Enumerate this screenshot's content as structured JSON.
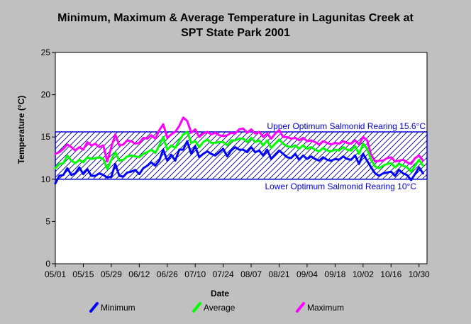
{
  "chart_data": {
    "type": "line",
    "title": "Minimum, Maximum & Average Temperature in Lagunitas Creek at",
    "subtitle": "SPT State Park 2001",
    "xlabel": "Date",
    "ylabel": "Temperature (°C)",
    "ylim": [
      0,
      25
    ],
    "yticks": [
      0,
      5,
      10,
      15,
      20,
      25
    ],
    "xlim": [
      0,
      186
    ],
    "xticks": [
      {
        "day": 0,
        "label": "05/01"
      },
      {
        "day": 14,
        "label": "05/15"
      },
      {
        "day": 28,
        "label": "05/29"
      },
      {
        "day": 42,
        "label": "06/12"
      },
      {
        "day": 56,
        "label": "06/26"
      },
      {
        "day": 70,
        "label": "07/10"
      },
      {
        "day": 84,
        "label": "07/24"
      },
      {
        "day": 98,
        "label": "08/07"
      },
      {
        "day": 112,
        "label": "08/21"
      },
      {
        "day": 126,
        "label": "09/04"
      },
      {
        "day": 140,
        "label": "09/18"
      },
      {
        "day": 154,
        "label": "10/02"
      },
      {
        "day": 168,
        "label": "10/16"
      },
      {
        "day": 182,
        "label": "10/30"
      }
    ],
    "grid": false,
    "legend_position": "bottom",
    "bands": [
      {
        "name": "Upper Optimum Salmonid Rearing 15.6°C",
        "value": 15.6
      },
      {
        "name": "Lower Optimum Salmonid Rearing 10°C",
        "value": 10
      }
    ],
    "series": [
      {
        "name": "Minimum",
        "color": "#0000ff",
        "x": [
          0,
          2,
          4,
          6,
          8,
          10,
          12,
          14,
          16,
          18,
          20,
          22,
          24,
          26,
          28,
          30,
          32,
          34,
          36,
          38,
          40,
          42,
          44,
          46,
          48,
          50,
          52,
          54,
          56,
          58,
          60,
          62,
          64,
          66,
          68,
          70,
          72,
          74,
          76,
          78,
          80,
          82,
          84,
          86,
          88,
          90,
          92,
          94,
          96,
          98,
          100,
          102,
          104,
          106,
          108,
          110,
          112,
          114,
          116,
          118,
          120,
          122,
          124,
          126,
          128,
          130,
          132,
          134,
          136,
          138,
          140,
          142,
          144,
          146,
          148,
          150,
          152,
          154,
          156,
          158,
          160,
          162,
          164,
          166,
          168,
          170,
          172,
          174,
          176,
          178,
          180,
          182,
          184
        ],
        "values": [
          9.5,
          10.4,
          10.5,
          11.3,
          10.5,
          10.7,
          11.4,
          10.6,
          11.2,
          10.4,
          10.4,
          10.7,
          10.5,
          10.2,
          10.3,
          11.8,
          10.4,
          10.3,
          10.8,
          10.9,
          11.1,
          10.6,
          11.3,
          11.6,
          12.0,
          11.6,
          12.2,
          13.5,
          12.2,
          12.9,
          12.2,
          13.5,
          13.5,
          14.5,
          13.0,
          13.9,
          12.6,
          13.0,
          13.3,
          13.0,
          12.8,
          13.2,
          13.6,
          12.7,
          13.4,
          13.8,
          13.5,
          13.5,
          13.2,
          13.8,
          13.2,
          13.4,
          12.8,
          13.5,
          12.4,
          12.9,
          13.4,
          13.0,
          12.6,
          12.5,
          13.0,
          12.3,
          12.8,
          12.4,
          12.7,
          12.4,
          12.2,
          12.6,
          12.3,
          12.2,
          12.4,
          12.3,
          12.7,
          12.4,
          12.3,
          12.8,
          11.8,
          13.0,
          12.2,
          11.4,
          10.7,
          10.4,
          10.7,
          10.8,
          10.9,
          10.4,
          11.1,
          10.7,
          10.5,
          9.9,
          10.6,
          11.4,
          10.7
        ]
      },
      {
        "name": "Average",
        "color": "#00ff00",
        "x": [
          0,
          2,
          4,
          6,
          8,
          10,
          12,
          14,
          16,
          18,
          20,
          22,
          24,
          26,
          28,
          30,
          32,
          34,
          36,
          38,
          40,
          42,
          44,
          46,
          48,
          50,
          52,
          54,
          56,
          58,
          60,
          62,
          64,
          66,
          68,
          70,
          72,
          74,
          76,
          78,
          80,
          82,
          84,
          86,
          88,
          90,
          92,
          94,
          96,
          98,
          100,
          102,
          104,
          106,
          108,
          110,
          112,
          114,
          116,
          118,
          120,
          122,
          124,
          126,
          128,
          130,
          132,
          134,
          136,
          138,
          140,
          142,
          144,
          146,
          148,
          150,
          152,
          154,
          156,
          158,
          160,
          162,
          164,
          166,
          168,
          170,
          172,
          174,
          176,
          178,
          180,
          182,
          184
        ],
        "values": [
          11.3,
          11.8,
          11.9,
          12.8,
          12.2,
          11.9,
          12.3,
          12.0,
          12.6,
          12.4,
          12.5,
          12.6,
          12.4,
          11.2,
          12.3,
          13.2,
          12.2,
          12.3,
          12.7,
          12.8,
          12.7,
          12.6,
          13.0,
          13.2,
          13.5,
          13.1,
          14.0,
          15.0,
          13.5,
          14.0,
          13.7,
          14.6,
          15.3,
          15.6,
          14.3,
          14.5,
          13.8,
          14.4,
          14.7,
          14.3,
          14.3,
          14.4,
          14.4,
          14.0,
          14.6,
          14.6,
          14.8,
          14.8,
          14.4,
          14.9,
          14.4,
          14.6,
          14.0,
          14.6,
          13.7,
          14.2,
          14.7,
          14.2,
          13.9,
          13.8,
          14.0,
          13.6,
          14.0,
          13.6,
          13.8,
          13.5,
          13.3,
          13.7,
          13.4,
          13.3,
          13.5,
          13.4,
          13.8,
          13.5,
          13.4,
          13.9,
          13.0,
          14.2,
          13.6,
          12.3,
          11.5,
          11.3,
          11.6,
          11.8,
          11.9,
          11.4,
          11.8,
          11.6,
          11.4,
          10.9,
          11.6,
          12.3,
          11.6
        ]
      },
      {
        "name": "Maximum",
        "color": "#ff00ff",
        "x": [
          0,
          2,
          4,
          6,
          8,
          10,
          12,
          14,
          16,
          18,
          20,
          22,
          24,
          26,
          28,
          30,
          32,
          34,
          36,
          38,
          40,
          42,
          44,
          46,
          48,
          50,
          52,
          54,
          56,
          58,
          60,
          62,
          64,
          66,
          68,
          70,
          72,
          74,
          76,
          78,
          80,
          82,
          84,
          86,
          88,
          90,
          92,
          94,
          96,
          98,
          100,
          102,
          104,
          106,
          108,
          110,
          112,
          114,
          116,
          118,
          120,
          122,
          124,
          126,
          128,
          130,
          132,
          134,
          136,
          138,
          140,
          142,
          144,
          146,
          148,
          150,
          152,
          154,
          156,
          158,
          160,
          162,
          164,
          166,
          168,
          170,
          172,
          174,
          176,
          178,
          180,
          182,
          184
        ],
        "values": [
          13.0,
          13.2,
          13.6,
          14.1,
          13.8,
          13.4,
          13.8,
          13.5,
          14.4,
          14.0,
          14.2,
          13.8,
          14.0,
          12.1,
          13.8,
          15.3,
          14.0,
          14.1,
          14.6,
          14.5,
          14.2,
          14.3,
          14.9,
          14.8,
          15.2,
          14.8,
          15.8,
          16.5,
          14.9,
          15.3,
          15.6,
          16.3,
          17.3,
          16.9,
          15.5,
          15.9,
          15.0,
          15.4,
          15.6,
          15.3,
          15.5,
          15.2,
          15.1,
          15.2,
          15.5,
          15.4,
          15.9,
          16.0,
          15.5,
          15.9,
          15.4,
          15.6,
          15.0,
          15.4,
          14.8,
          15.4,
          15.8,
          15.0,
          15.0,
          14.8,
          14.9,
          14.6,
          14.9,
          14.5,
          14.6,
          14.4,
          14.1,
          14.5,
          14.3,
          14.1,
          14.3,
          14.2,
          14.5,
          14.3,
          14.2,
          14.6,
          14.1,
          15.0,
          14.6,
          12.9,
          12.1,
          12.2,
          12.2,
          12.5,
          12.6,
          12.1,
          12.2,
          12.3,
          12.0,
          11.8,
          12.5,
          12.8,
          12.2
        ]
      }
    ]
  }
}
